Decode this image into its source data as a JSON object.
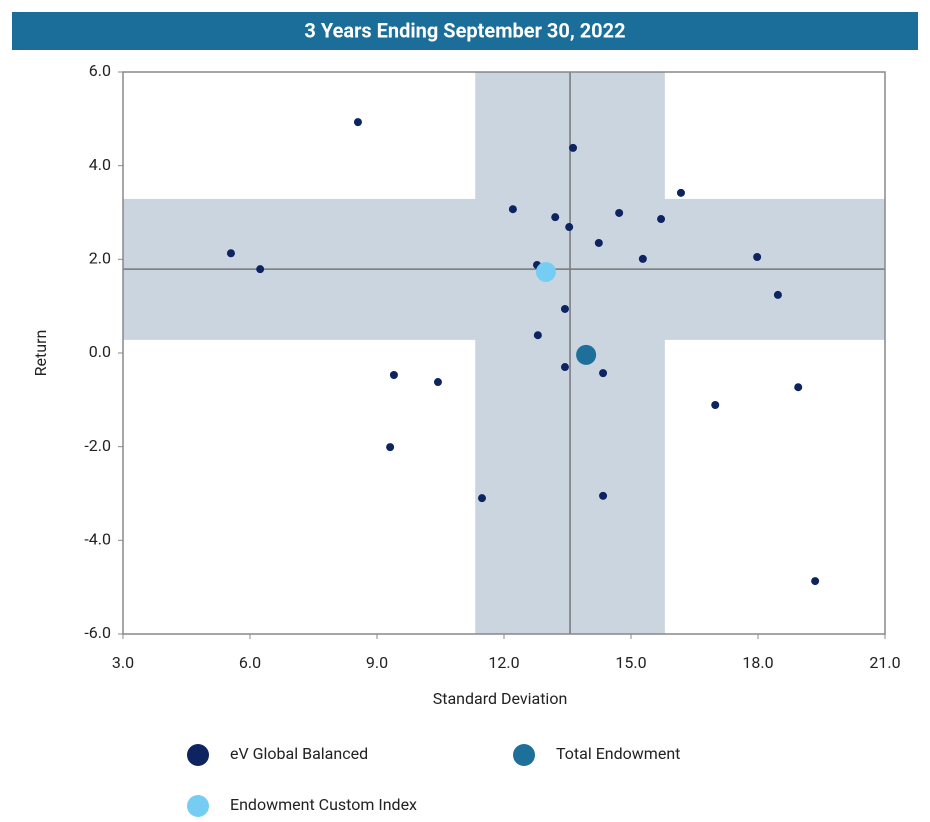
{
  "chart_data": {
    "type": "scatter",
    "title": "3 Years Ending September 30, 2022",
    "xlabel": "Standard Deviation",
    "ylabel": "Return",
    "xlim": [
      3,
      21
    ],
    "ylim": [
      -6,
      6
    ],
    "xticks": [
      {
        "value": 3,
        "label": "3.0"
      },
      {
        "value": 6,
        "label": "6.0"
      },
      {
        "value": 9,
        "label": "9.0"
      },
      {
        "value": 12,
        "label": "12.0"
      },
      {
        "value": 15,
        "label": "15.0"
      },
      {
        "value": 18,
        "label": "18.0"
      },
      {
        "value": 21,
        "label": "21.0"
      }
    ],
    "yticks": [
      {
        "value": -6,
        "label": "-6.0"
      },
      {
        "value": -4,
        "label": "-4.0"
      },
      {
        "value": -2,
        "label": "-2.0"
      },
      {
        "value": 0,
        "label": "0.0"
      },
      {
        "value": 2,
        "label": "2.0"
      },
      {
        "value": 4,
        "label": "4.0"
      },
      {
        "value": 6,
        "label": "6.0"
      }
    ],
    "shading": {
      "x_range": [
        11.32,
        15.8
      ],
      "y_range": [
        0.28,
        3.29
      ],
      "color": "#cbd5e0"
    },
    "medians": {
      "x": 13.56,
      "y": 1.79,
      "color": "#777777"
    },
    "series": [
      {
        "name": "eV Global Balanced",
        "color": "#0d2461",
        "size": 4,
        "x": [
          8.55,
          5.55,
          6.24,
          13.63,
          12.21,
          13.21,
          13.54,
          14.72,
          15.71,
          16.18,
          14.24,
          15.28,
          17.98,
          12.78,
          18.47,
          13.44,
          12.8,
          9.4,
          10.44,
          13.44,
          14.34,
          16.99,
          18.95,
          9.31,
          11.48,
          14.34,
          19.35
        ],
        "values": [
          4.93,
          2.13,
          1.79,
          4.38,
          3.07,
          2.9,
          2.69,
          2.99,
          2.86,
          3.42,
          2.35,
          2.01,
          2.05,
          1.88,
          1.24,
          0.94,
          0.38,
          -0.47,
          -0.62,
          -0.3,
          -0.43,
          -1.11,
          -0.73,
          -2.01,
          -3.1,
          -3.05,
          -4.87
        ]
      },
      {
        "name": "Total Endowment",
        "color": "#1e6f99",
        "size": 10,
        "x": [
          13.94
        ],
        "values": [
          -0.04
        ]
      },
      {
        "name": "Endowment Custom Index",
        "color": "#75cdf3",
        "size": 10,
        "x": [
          12.99
        ],
        "values": [
          1.73
        ]
      }
    ]
  }
}
